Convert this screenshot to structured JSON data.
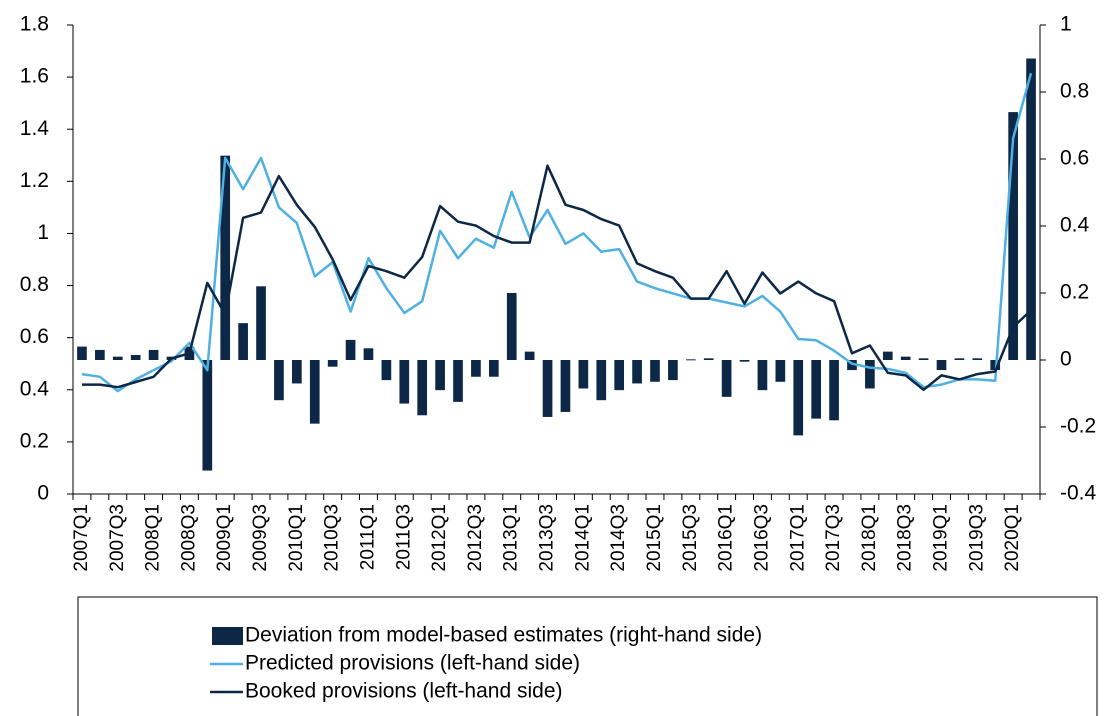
{
  "chart_data": {
    "type": "combo",
    "categories": [
      "2007Q1",
      null,
      "2007Q3",
      null,
      "2008Q1",
      null,
      "2008Q3",
      null,
      "2009Q1",
      null,
      "2009Q3",
      null,
      "2010Q1",
      null,
      "2010Q3",
      null,
      "2011Q1",
      null,
      "2011Q3",
      null,
      "2012Q1",
      null,
      "2012Q3",
      null,
      "2013Q1",
      null,
      "2013Q3",
      null,
      "2014Q1",
      null,
      "2014Q3",
      null,
      "2015Q1",
      null,
      "2015Q3",
      null,
      "2016Q1",
      null,
      "2016Q3",
      null,
      "2017Q1",
      null,
      "2017Q3",
      null,
      "2018Q1",
      null,
      "2018Q3",
      null,
      "2019Q1",
      null,
      "2019Q3",
      null,
      "2020Q1",
      null
    ],
    "series": [
      {
        "name": "Deviation from model-based estimates (right-hand side)",
        "type": "bar",
        "axis": "y2",
        "color": "#0d2847",
        "values": [
          0.04,
          0.03,
          0.01,
          0.015,
          0.03,
          0.01,
          0.04,
          -0.33,
          0.61,
          0.11,
          0.22,
          -0.12,
          -0.07,
          -0.19,
          -0.02,
          0.06,
          0.035,
          -0.06,
          -0.13,
          -0.165,
          -0.09,
          -0.125,
          -0.05,
          -0.05,
          0.2,
          0.025,
          -0.17,
          -0.155,
          -0.085,
          -0.12,
          -0.09,
          -0.07,
          -0.065,
          -0.06,
          0.002,
          0.005,
          -0.11,
          -0.005,
          -0.09,
          -0.065,
          -0.225,
          -0.175,
          -0.18,
          -0.03,
          -0.085,
          0.025,
          0.01,
          0.005,
          -0.03,
          0.005,
          0.005,
          -0.03,
          0.74,
          0.9
        ]
      },
      {
        "name": "Predicted provisions (left-hand side)",
        "type": "line",
        "color": "#4fb0e3",
        "values": [
          0.46,
          0.45,
          0.395,
          0.44,
          0.475,
          0.51,
          0.58,
          0.475,
          1.29,
          1.17,
          1.29,
          1.1,
          1.04,
          0.835,
          0.89,
          0.7,
          0.905,
          0.79,
          0.695,
          0.74,
          1.01,
          0.905,
          0.98,
          0.945,
          1.16,
          0.985,
          1.09,
          0.96,
          1.0,
          0.93,
          0.94,
          0.815,
          0.79,
          0.77,
          0.75,
          0.75,
          0.735,
          0.72,
          0.76,
          0.7,
          0.595,
          0.59,
          0.55,
          0.5,
          0.485,
          0.48,
          0.465,
          0.41,
          0.42,
          0.44,
          0.44,
          0.435,
          1.365,
          1.615
        ]
      },
      {
        "name": "Booked provisions (left-hand side)",
        "type": "line",
        "color": "#0d2847",
        "values": [
          0.42,
          0.42,
          0.41,
          0.43,
          0.45,
          0.52,
          0.54,
          0.81,
          0.69,
          1.06,
          1.08,
          1.22,
          1.11,
          1.025,
          0.9,
          0.745,
          0.875,
          0.855,
          0.83,
          0.91,
          1.105,
          1.045,
          1.03,
          0.99,
          0.965,
          0.965,
          1.26,
          1.11,
          1.09,
          1.055,
          1.03,
          0.885,
          0.855,
          0.83,
          0.75,
          0.75,
          0.855,
          0.73,
          0.85,
          0.77,
          0.815,
          0.77,
          0.74,
          0.54,
          0.57,
          0.465,
          0.455,
          0.4,
          0.455,
          0.44,
          0.46,
          0.47,
          0.64,
          0.705
        ]
      }
    ],
    "ylim": [
      0,
      1.8
    ],
    "yticks": [
      0,
      0.2,
      0.4,
      0.6,
      0.8,
      1,
      1.2,
      1.4,
      1.6,
      1.8
    ],
    "y2lim": [
      -0.4,
      1
    ],
    "y2ticks": [
      -0.4,
      -0.2,
      0,
      0.2,
      0.4,
      0.6,
      0.8,
      1
    ],
    "grid": false,
    "legend": "bottom"
  }
}
